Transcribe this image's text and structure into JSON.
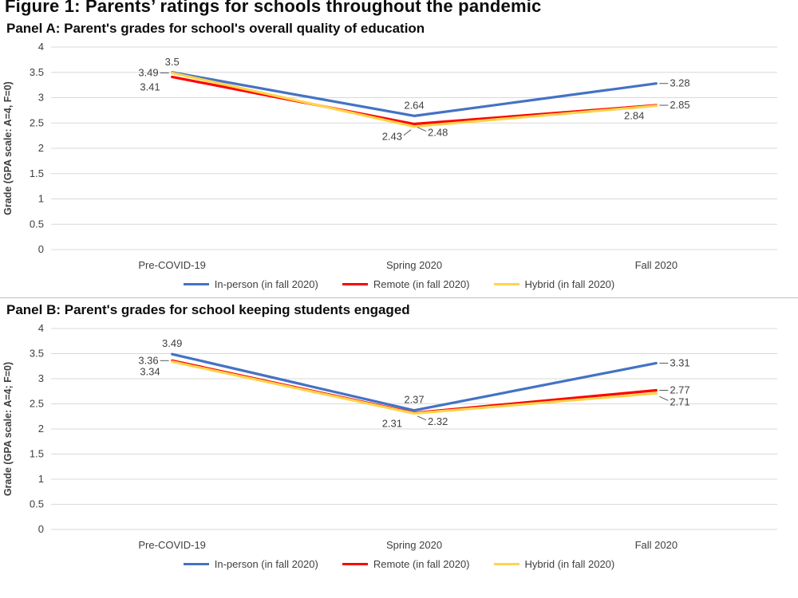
{
  "figure": {
    "title": "Figure 1: Parents’ ratings for schools throughout the pandemic"
  },
  "chart_data": [
    {
      "type": "line",
      "title": "Panel A: Parent's grades for school's overall quality of education",
      "ylabel": "Grade (GPA scale: A=4, F=0)",
      "categories": [
        "Pre-COVID-19",
        "Spring 2020",
        "Fall 2020"
      ],
      "ylim": [
        0,
        4
      ],
      "ytick_step": 0.5,
      "grid": true,
      "legend_position": "bottom",
      "series": [
        {
          "name": "In-person (in fall 2020)",
          "color": "#4472C4",
          "values": [
            3.5,
            2.64,
            3.28
          ],
          "labels": [
            {
              "pos": "above"
            },
            {
              "pos": "above"
            },
            {
              "pos": "right",
              "leader": true
            }
          ]
        },
        {
          "name": "Remote (in fall 2020)",
          "color": "#FF0000",
          "values": [
            3.41,
            2.48,
            2.85
          ],
          "labels": [
            {
              "pos": "below-left"
            },
            {
              "pos": "below-right",
              "leader": true
            },
            {
              "pos": "right",
              "leader": true
            }
          ]
        },
        {
          "name": "Hybrid (in fall 2020)",
          "color": "#FFD34D",
          "values": [
            3.49,
            2.43,
            2.84
          ],
          "labels": [
            {
              "pos": "left",
              "leader": true
            },
            {
              "pos": "below-left",
              "leader": true
            },
            {
              "pos": "below-left"
            }
          ]
        }
      ]
    },
    {
      "type": "line",
      "title": "Panel B: Parent's grades for school keeping students engaged",
      "ylabel": "Grade (GPA scale: A=4; F=0)",
      "categories": [
        "Pre-COVID-19",
        "Spring 2020",
        "Fall 2020"
      ],
      "ylim": [
        0,
        4
      ],
      "ytick_step": 0.5,
      "grid": true,
      "legend_position": "bottom",
      "series": [
        {
          "name": "In-person (in fall 2020)",
          "color": "#4472C4",
          "values": [
            3.49,
            2.37,
            3.31
          ],
          "labels": [
            {
              "pos": "above"
            },
            {
              "pos": "above"
            },
            {
              "pos": "right",
              "leader": true
            }
          ]
        },
        {
          "name": "Remote (in fall 2020)",
          "color": "#FF0000",
          "values": [
            3.36,
            2.32,
            2.77
          ],
          "labels": [
            {
              "pos": "left",
              "leader": true
            },
            {
              "pos": "below-right",
              "leader": true
            },
            {
              "pos": "right",
              "leader": true
            }
          ]
        },
        {
          "name": "Hybrid (in fall 2020)",
          "color": "#FFD34D",
          "values": [
            3.34,
            2.31,
            2.71
          ],
          "labels": [
            {
              "pos": "below-left"
            },
            {
              "pos": "below-left"
            },
            {
              "pos": "below-right",
              "leader": true
            }
          ]
        }
      ]
    }
  ]
}
